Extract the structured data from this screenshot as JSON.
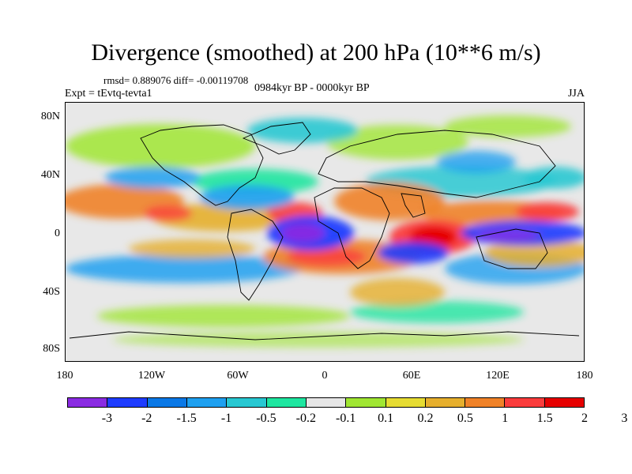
{
  "title": "Divergence (smoothed) at 200 hPa (10**6 m/s)",
  "rmsd_text": "rmsd= 0.889076 diff= -0.00119708",
  "experiment": "Expt = tEvtq-tevta1",
  "period": "0984kyr BP - 0000kyr BP",
  "season": "JJA",
  "lat_labels": [
    "80N",
    "40N",
    "0",
    "40S",
    "80S"
  ],
  "lon_labels": [
    "180",
    "120W",
    "60W",
    "0",
    "60E",
    "120E",
    "180"
  ],
  "colorbar": {
    "colors": [
      "#8a2be2",
      "#1e3cff",
      "#0a78e6",
      "#1ea0f0",
      "#28c8d2",
      "#1ee6a0",
      "#e6e6e6",
      "#a0e632",
      "#e6dc32",
      "#e6af2d",
      "#f08228",
      "#fa3c3c",
      "#e60000"
    ],
    "labels": [
      "-3",
      "-2",
      "-1.5",
      "-1",
      "-0.5",
      "-0.2",
      "-0.1",
      "0.1",
      "0.2",
      "0.5",
      "1",
      "1.5",
      "2",
      "3"
    ]
  }
}
